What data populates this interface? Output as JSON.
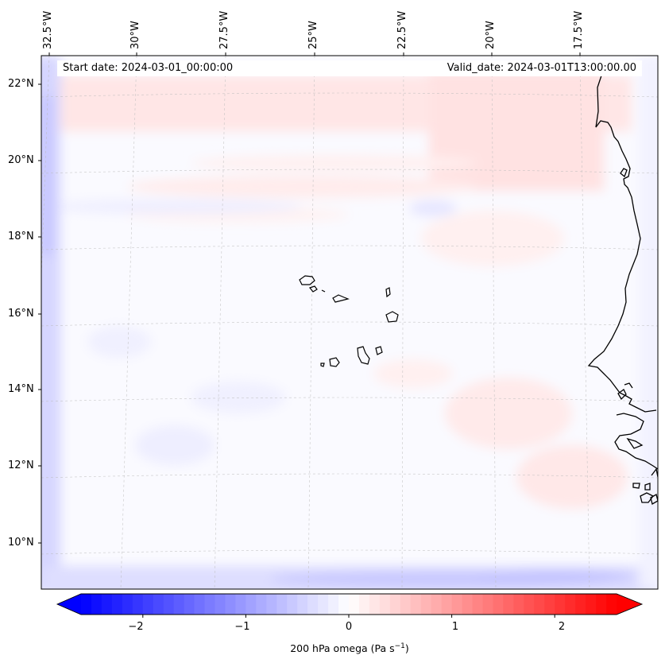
{
  "map": {
    "start_date": "Start date: 2024-03-01_00:00:00",
    "valid_date": "Valid_date: 2024-03-01T13:00:00.00",
    "lat_labels": [
      "22°N",
      "20°N",
      "18°N",
      "16°N",
      "14°N",
      "12°N",
      "10°N"
    ],
    "lon_labels": [
      "32.5°W",
      "30°W",
      "27.5°W",
      "25°W",
      "22.5°W",
      "20°W",
      "17.5°W"
    ],
    "features": [
      "Cape Verde islands",
      "West African coastline"
    ]
  },
  "colorbar": {
    "title": "200 hPa omega (Pa s",
    "title_superscript": "−1",
    "title_close": ")",
    "ticks": [
      "−2",
      "−1",
      "0",
      "1",
      "2"
    ],
    "tick_values": [
      -2,
      -1,
      0,
      1,
      2
    ],
    "range": [
      -2.6,
      2.6
    ],
    "colormap": "bwr",
    "neg_color": "#0000ff",
    "mid_color": "#ffffff",
    "pos_color": "#ff0000"
  }
}
